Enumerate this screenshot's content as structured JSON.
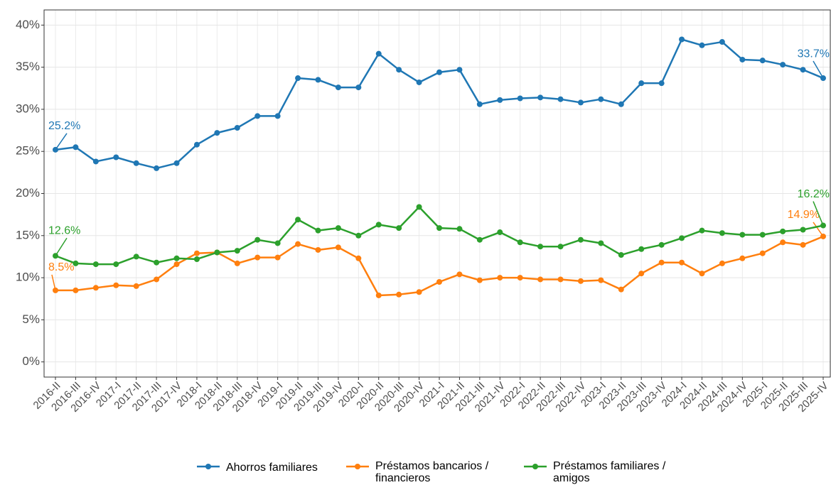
{
  "chart_data": {
    "type": "line",
    "categories": [
      "2016-II",
      "2016-III",
      "2016-IV",
      "2017-I",
      "2017-II",
      "2017-III",
      "2017-IV",
      "2018-I",
      "2018-II",
      "2018-III",
      "2018-IV",
      "2019-I",
      "2019-II",
      "2019-III",
      "2019-IV",
      "2020-I",
      "2020-II",
      "2020-III",
      "2020-IV",
      "2021-I",
      "2021-II",
      "2021-III",
      "2021-IV",
      "2022-I",
      "2022-II",
      "2022-III",
      "2022-IV",
      "2023-I",
      "2023-II",
      "2023-III",
      "2023-IV",
      "2024-I",
      "2024-II",
      "2024-III",
      "2024-IV",
      "2025-I",
      "2025-II",
      "2025-III",
      "2025-IV"
    ],
    "series": [
      {
        "name": "Ahorros familiares",
        "color": "#1f77b4",
        "values": [
          25.2,
          25.5,
          23.8,
          24.3,
          23.6,
          23.0,
          23.6,
          25.8,
          27.2,
          27.8,
          29.2,
          29.2,
          33.7,
          33.5,
          32.6,
          32.6,
          36.6,
          34.7,
          33.2,
          34.4,
          34.7,
          30.6,
          31.1,
          31.3,
          31.4,
          31.2,
          30.8,
          31.2,
          30.6,
          33.1,
          33.1,
          38.3,
          37.6,
          38.0,
          35.9,
          35.8,
          35.3,
          34.7,
          33.7
        ],
        "value_labels": [
          "25.2%",
          null,
          null,
          null,
          null,
          null,
          null,
          null,
          null,
          null,
          null,
          null,
          null,
          null,
          null,
          null,
          null,
          null,
          null,
          null,
          null,
          null,
          null,
          null,
          null,
          null,
          null,
          null,
          null,
          null,
          null,
          null,
          null,
          null,
          null,
          null,
          null,
          null,
          "33.7%"
        ]
      },
      {
        "name": "Préstamos bancarios / financieros",
        "color": "#ff7f0e",
        "values": [
          8.5,
          8.5,
          8.8,
          9.1,
          9.0,
          9.8,
          11.6,
          12.9,
          13.0,
          11.7,
          12.4,
          12.4,
          14.0,
          13.3,
          13.6,
          12.3,
          7.9,
          8.0,
          8.3,
          9.5,
          10.4,
          9.7,
          10.0,
          10.0,
          9.8,
          9.8,
          9.6,
          9.7,
          8.6,
          10.5,
          11.8,
          11.8,
          10.5,
          11.7,
          12.3,
          12.9,
          14.2,
          13.9,
          14.9
        ],
        "value_labels": [
          "8.5%",
          null,
          null,
          null,
          null,
          null,
          null,
          null,
          null,
          null,
          null,
          null,
          null,
          null,
          null,
          null,
          null,
          null,
          null,
          null,
          null,
          null,
          null,
          null,
          null,
          null,
          null,
          null,
          null,
          null,
          null,
          null,
          null,
          null,
          null,
          null,
          null,
          null,
          "14.9%"
        ]
      },
      {
        "name": "Préstamos familiares / amigos",
        "color": "#2ca02c",
        "values": [
          12.6,
          11.7,
          11.6,
          11.6,
          12.5,
          11.8,
          12.3,
          12.2,
          13.0,
          13.2,
          14.5,
          14.1,
          16.9,
          15.6,
          15.9,
          15.0,
          16.3,
          15.9,
          18.4,
          15.9,
          15.8,
          14.5,
          15.4,
          14.2,
          13.7,
          13.7,
          14.5,
          14.1,
          12.7,
          13.4,
          13.9,
          14.7,
          15.6,
          15.3,
          15.1,
          15.1,
          15.5,
          15.7,
          16.2
        ],
        "value_labels": [
          "12.6%",
          null,
          null,
          null,
          null,
          null,
          null,
          null,
          null,
          null,
          null,
          null,
          null,
          null,
          null,
          null,
          null,
          null,
          null,
          null,
          null,
          null,
          null,
          null,
          null,
          null,
          null,
          null,
          null,
          null,
          null,
          null,
          null,
          null,
          null,
          null,
          null,
          null,
          "16.2%"
        ]
      }
    ],
    "ylim": [
      -1.8,
      41.8
    ],
    "yticks": [
      {
        "value": 0,
        "label": "0%"
      },
      {
        "value": 5,
        "label": "5%"
      },
      {
        "value": 10,
        "label": "10%"
      },
      {
        "value": 15,
        "label": "15%"
      },
      {
        "value": 20,
        "label": "20%"
      },
      {
        "value": 25,
        "label": "25%"
      },
      {
        "value": 30,
        "label": "30%"
      },
      {
        "value": 35,
        "label": "35%"
      },
      {
        "value": 40,
        "label": "40%"
      }
    ],
    "grid": true,
    "legend": "bottom"
  }
}
